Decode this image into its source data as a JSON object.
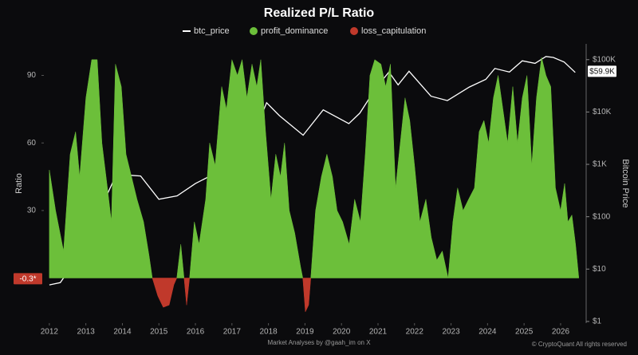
{
  "chart_data": {
    "type": "area",
    "title": "Realized P/L Ratio",
    "ylabel": "Ratio",
    "y2label": "Bitcoin Price",
    "footer": "Market Analyses by @gaah_im on X",
    "credit": "© CryptoQuant All rights reserved",
    "legend": "top",
    "x": [
      2012.0,
      2012.17,
      2012.39,
      2012.57,
      2012.72,
      2012.83,
      2013.0,
      2013.16,
      2013.31,
      2013.44,
      2013.59,
      2013.7,
      2013.81,
      2013.97,
      2014.1,
      2014.25,
      2014.4,
      2014.58,
      2014.73,
      2014.82,
      2014.97,
      2015.12,
      2015.28,
      2015.41,
      2015.49,
      2015.6,
      2015.69,
      2015.76,
      2015.84,
      2015.97,
      2016.1,
      2016.28,
      2016.39,
      2016.54,
      2016.72,
      2016.85,
      2017.0,
      2017.15,
      2017.28,
      2017.41,
      2017.55,
      2017.68,
      2017.79,
      2017.92,
      2018.07,
      2018.2,
      2018.33,
      2018.44,
      2018.57,
      2018.72,
      2018.88,
      2018.94,
      2019.01,
      2019.1,
      2019.16,
      2019.29,
      2019.45,
      2019.6,
      2019.75,
      2019.88,
      2020.03,
      2020.21,
      2020.36,
      2020.52,
      2020.65,
      2020.78,
      2020.91,
      2021.08,
      2021.21,
      2021.34,
      2021.48,
      2021.61,
      2021.74,
      2021.87,
      2022.0,
      2022.15,
      2022.31,
      2022.46,
      2022.61,
      2022.76,
      2022.92,
      2023.05,
      2023.18,
      2023.33,
      2023.48,
      2023.64,
      2023.77,
      2023.9,
      2024.03,
      2024.16,
      2024.29,
      2024.42,
      2024.55,
      2024.69,
      2024.82,
      2024.95,
      2025.08,
      2025.21,
      2025.34,
      2025.48,
      2025.6,
      2025.73,
      2025.86,
      2026.0,
      2026.11,
      2026.2,
      2026.31,
      2026.41,
      2026.5
    ],
    "series": [
      {
        "name": "btc_price",
        "type": "line",
        "axis": "y2",
        "color": "#ffffff",
        "x": [
          2012.0,
          2012.3,
          2012.6,
          2012.9,
          2013.3,
          2013.9,
          2014.2,
          2014.5,
          2015.0,
          2015.5,
          2016.0,
          2016.5,
          2017.0,
          2017.5,
          2017.95,
          2018.3,
          2018.95,
          2019.5,
          2020.2,
          2020.5,
          2020.95,
          2021.3,
          2021.55,
          2021.85,
          2022.45,
          2022.9,
          2023.5,
          2023.95,
          2024.2,
          2024.6,
          2024.95,
          2025.3,
          2025.6,
          2025.8,
          2026.1,
          2026.4
        ],
        "values": [
          5,
          5.5,
          11,
          13,
          100,
          800,
          620,
          600,
          215,
          250,
          430,
          650,
          1000,
          2500,
          15000,
          8500,
          3600,
          11000,
          6000,
          9500,
          29000,
          58000,
          33000,
          60000,
          20000,
          16500,
          30000,
          42000,
          68000,
          58000,
          95000,
          85000,
          115000,
          110000,
          90000,
          57000
        ]
      },
      {
        "name": "profit_dominance",
        "type": "area",
        "color": "#6cbf3a",
        "values": [
          48,
          30,
          12,
          55,
          65,
          45,
          80,
          97,
          97,
          60,
          40,
          25,
          95,
          85,
          55,
          45,
          35,
          25,
          10,
          0,
          null,
          null,
          null,
          null,
          0,
          15,
          0,
          null,
          0,
          25,
          15,
          35,
          60,
          50,
          85,
          75,
          97,
          90,
          97,
          80,
          95,
          85,
          97,
          65,
          35,
          55,
          45,
          60,
          30,
          20,
          5,
          0,
          null,
          null,
          0,
          30,
          45,
          55,
          45,
          30,
          25,
          15,
          35,
          25,
          55,
          90,
          97,
          95,
          85,
          95,
          40,
          60,
          80,
          70,
          50,
          25,
          35,
          18,
          8,
          12,
          0,
          25,
          40,
          30,
          35,
          40,
          65,
          70,
          60,
          80,
          90,
          75,
          60,
          85,
          60,
          80,
          90,
          50,
          80,
          98,
          90,
          85,
          40,
          30,
          42,
          25,
          28,
          15,
          0
        ]
      },
      {
        "name": "loss_capitulation",
        "type": "area",
        "color": "#c0392b",
        "values": [
          null,
          null,
          null,
          null,
          null,
          null,
          null,
          null,
          null,
          null,
          null,
          null,
          null,
          null,
          null,
          null,
          null,
          null,
          null,
          0,
          -8,
          -13,
          -12,
          -3,
          0,
          null,
          0,
          -12,
          0,
          null,
          null,
          null,
          null,
          null,
          null,
          null,
          null,
          null,
          null,
          null,
          null,
          null,
          null,
          null,
          null,
          null,
          null,
          null,
          null,
          null,
          null,
          0,
          -15,
          -12,
          0,
          null,
          null,
          null,
          null,
          null,
          null,
          null,
          null,
          null,
          null,
          null,
          null,
          null,
          null,
          null,
          null,
          null,
          null,
          null,
          null,
          null,
          null,
          null,
          null,
          null,
          null,
          null,
          null,
          null,
          null,
          null,
          null,
          null,
          null,
          null,
          null,
          null,
          null,
          null,
          null,
          null,
          null,
          null,
          null,
          null,
          null,
          null,
          null,
          null,
          null,
          null,
          null,
          null,
          null
        ]
      }
    ],
    "xlim": [
      2011.85,
      2026.7
    ],
    "xticks": [
      2012,
      2013,
      2014,
      2015,
      2016,
      2017,
      2018,
      2019,
      2020,
      2021,
      2022,
      2023,
      2024,
      2025,
      2026
    ],
    "ylim": [
      -20,
      104
    ],
    "yticks": [
      30,
      60,
      90
    ],
    "y2lim": [
      0.93,
      200000
    ],
    "y2scale": "log",
    "y2ticks": [
      {
        "value": 1,
        "label": "$1"
      },
      {
        "value": 10,
        "label": "$10"
      },
      {
        "value": 100,
        "label": "$100"
      },
      {
        "value": 1000,
        "label": "$1K"
      },
      {
        "value": 10000,
        "label": "$10K"
      },
      {
        "value": 100000,
        "label": "$100K"
      }
    ],
    "annotations": [
      {
        "axis": "y",
        "value": -0.3,
        "label": "-0.3*",
        "color": "#c0392b"
      },
      {
        "axis": "y2",
        "value": 59900,
        "label": "$59.9K",
        "color": "#ffffff"
      }
    ]
  }
}
